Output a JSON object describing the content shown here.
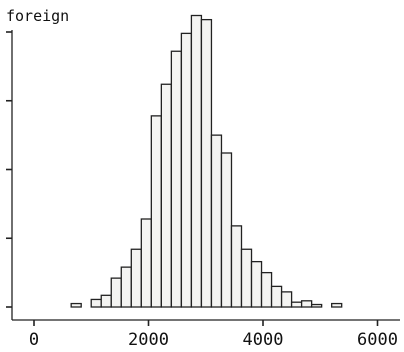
{
  "chart_data": {
    "type": "bar",
    "title": "foreign",
    "xlabel": "",
    "ylabel": "",
    "xlim": [
      -100,
      6200
    ],
    "ylim": [
      0,
      0.24
    ],
    "x_ticks": [
      0,
      2000,
      4000,
      6000
    ],
    "x_tick_labels": [
      "0",
      "2000",
      "4000",
      "6000"
    ],
    "y_ticks": [
      0,
      0.05,
      0.1,
      0.15,
      0.2
    ],
    "y_tick_labels": [
      "",
      "",
      "",
      "",
      ""
    ],
    "bin_width": 175,
    "x": [
      737,
      1087,
      1262,
      1437,
      1612,
      1787,
      1962,
      2137,
      2312,
      2487,
      2662,
      2837,
      3012,
      3187,
      3362,
      3537,
      3712,
      3887,
      4062,
      4237,
      4412,
      4587,
      4762,
      4937,
      5287
    ],
    "values": [
      0.0025,
      0.0055,
      0.0085,
      0.021,
      0.029,
      0.042,
      0.064,
      0.139,
      0.162,
      0.186,
      0.199,
      0.212,
      0.209,
      0.125,
      0.112,
      0.059,
      0.042,
      0.033,
      0.025,
      0.015,
      0.011,
      0.0035,
      0.0045,
      0.0018,
      0.0025
    ],
    "grid": false,
    "colors": {
      "bar_fill": "#f4f4f2",
      "bar_edge": "#222222",
      "axis": "#222222"
    }
  }
}
